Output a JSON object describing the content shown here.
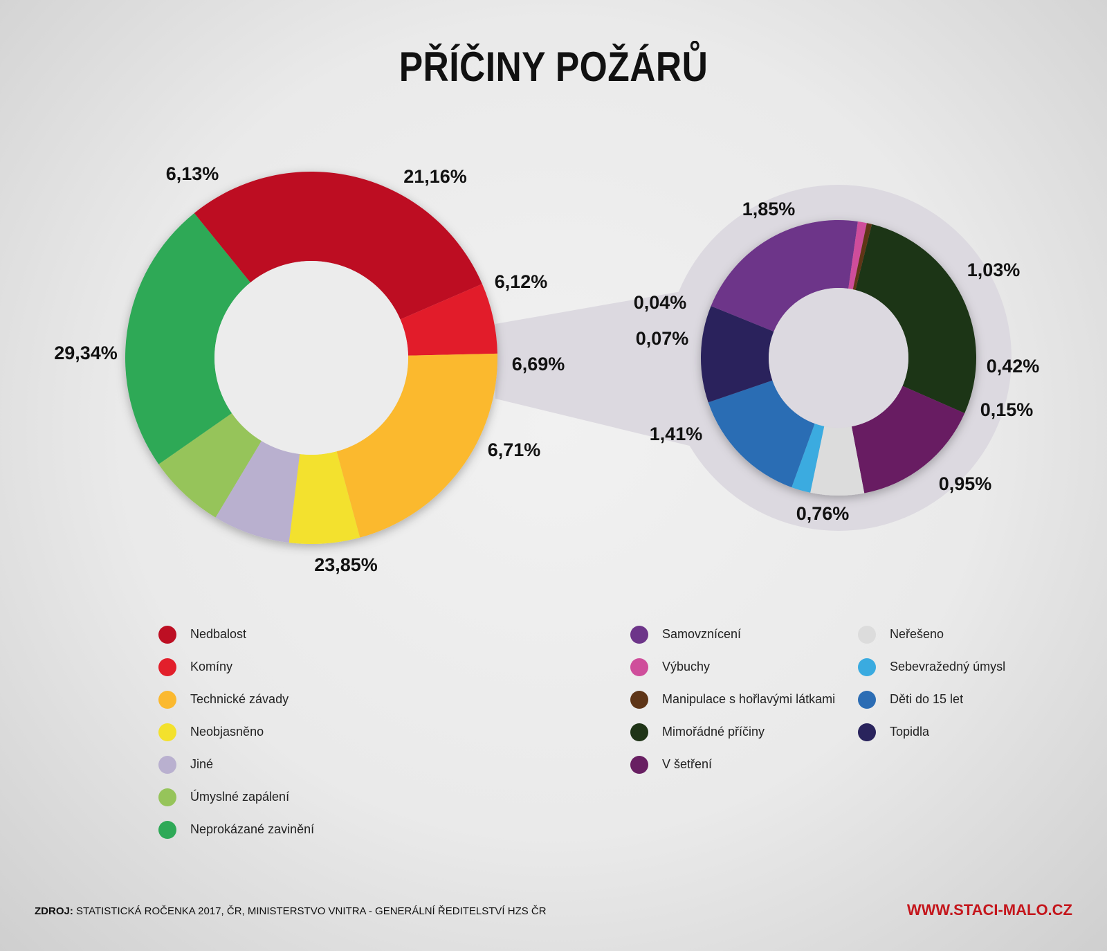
{
  "title": "PŘÍČINY POŽÁRŮ",
  "chart_data": [
    {
      "type": "pie",
      "title": "",
      "categories": [
        "Nedbalost",
        "Komíny",
        "Technické závady",
        "Neobjasněno",
        "Jiné",
        "Úmyslné zapálení",
        "Neprokázané zavinění"
      ],
      "values": [
        29.34,
        6.13,
        21.16,
        6.12,
        6.69,
        6.71,
        23.85
      ],
      "labels": [
        "29,34%",
        "6,13%",
        "21,16%",
        "6,12%",
        "6,69%",
        "6,71%",
        "23,85%"
      ],
      "colors": [
        "#bd0f23",
        "#e21f2b",
        "#fbb92f",
        "#f3e12d",
        "#b9b0cf",
        "#96c45a",
        "#2ea957"
      ],
      "start_angle_deg": -129
    },
    {
      "type": "pie",
      "title": "",
      "categories": [
        "Mimořádné příčiny",
        "V šetření",
        "Neřešeno",
        "Sebevražedný úmysl",
        "Děti do 15 let",
        "Topidla",
        "Samovznícení",
        "Výbuchy",
        "Manipulace s hořlavými látkami"
      ],
      "values": [
        1.85,
        1.03,
        0.42,
        0.15,
        0.95,
        0.76,
        1.41,
        0.07,
        0.04
      ],
      "labels": [
        "1,85%",
        "1,03%",
        "0,42%",
        "0,15%",
        "0,95%",
        "0,76%",
        "1,41%",
        "0,07%",
        "0,04%"
      ],
      "colors": [
        "#1f3417",
        "#681f62",
        "#dcdcdc",
        "#3aabe0",
        "#2c6db4",
        "#29235c",
        "#6d3589",
        "#cf4e9b",
        "#5e3517"
      ],
      "start_angle_deg": -76
    }
  ],
  "legend_main": [
    {
      "label": "Nedbalost",
      "color": "#bd0f23"
    },
    {
      "label": "Komíny",
      "color": "#e21f2b"
    },
    {
      "label": "Technické závady",
      "color": "#fbb92f"
    },
    {
      "label": "Neobjasněno",
      "color": "#f3e12d"
    },
    {
      "label": "Jiné",
      "color": "#b9b0cf"
    },
    {
      "label": "Úmyslné zapálení",
      "color": "#96c45a"
    },
    {
      "label": "Neprokázané zavinění",
      "color": "#2ea957"
    }
  ],
  "legend_detail_col1": [
    {
      "label": "Samovznícení",
      "color": "#6d3589"
    },
    {
      "label": "Výbuchy",
      "color": "#cf4e9b"
    },
    {
      "label": "Manipulace s hořlavými látkami",
      "color": "#5e3517"
    },
    {
      "label": "Mimořádné příčiny",
      "color": "#1f3417"
    },
    {
      "label": "V šetření",
      "color": "#681f62"
    }
  ],
  "legend_detail_col2": [
    {
      "label": "Neřešeno",
      "color": "#dcdcdc"
    },
    {
      "label": "Sebevražedný úmysl",
      "color": "#3aabe0"
    },
    {
      "label": "Děti do 15 let",
      "color": "#2c6db4"
    },
    {
      "label": "Topidla",
      "color": "#29235c"
    }
  ],
  "footer": {
    "source_prefix": "ZDROJ:",
    "source_text": " STATISTICKÁ ROČENKA 2017, ČR, MINISTERSTVO VNITRA - GENERÁLNÍ ŘEDITELSTVÍ HZS ČR",
    "url": "WWW.STACI-MALO.CZ"
  }
}
